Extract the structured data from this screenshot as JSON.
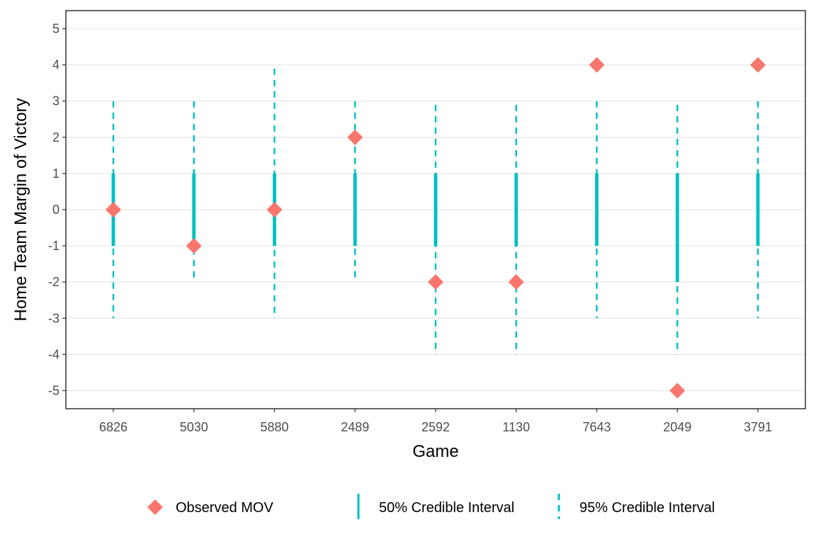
{
  "chart_data": {
    "type": "scatter",
    "title": "",
    "xlabel": "Game",
    "ylabel": "Home Team Margin of Victory",
    "categories": [
      "6826",
      "5030",
      "5880",
      "2489",
      "2592",
      "1130",
      "7643",
      "2049",
      "3791"
    ],
    "ylim": [
      -5.5,
      5.5
    ],
    "yticks": [
      5,
      4,
      3,
      2,
      1,
      0,
      -1,
      -2,
      -3,
      -4,
      -5
    ],
    "ytick_labels": [
      "5",
      "4",
      "3",
      "2",
      "1",
      "0",
      "-1",
      "-2",
      "-3",
      "-4",
      "-5"
    ],
    "grid": true,
    "legend_position": "bottom",
    "series": [
      {
        "name": "Observed MOV",
        "kind": "point",
        "marker": "diamond",
        "color": "#F8766D",
        "values": [
          0,
          -1,
          0,
          2,
          -2,
          -2,
          4,
          -5,
          4
        ]
      },
      {
        "name": "50% Credible Interval",
        "kind": "interval",
        "line": "solid",
        "color": "#00BFC4",
        "low": [
          -1,
          -1,
          -1,
          -1,
          -1,
          -1,
          -1,
          -2,
          -1
        ],
        "high": [
          1,
          1,
          1,
          1,
          1,
          1,
          1,
          1,
          1
        ]
      },
      {
        "name": "95% Credible Interval",
        "kind": "interval",
        "line": "dashed",
        "color": "#00BFC4",
        "low": [
          -3,
          -2,
          -3,
          -2,
          -4,
          -4,
          -3,
          -4,
          -3
        ],
        "high": [
          3,
          3,
          3.9,
          3,
          2.9,
          2.9,
          3,
          2.9,
          3
        ]
      }
    ]
  }
}
